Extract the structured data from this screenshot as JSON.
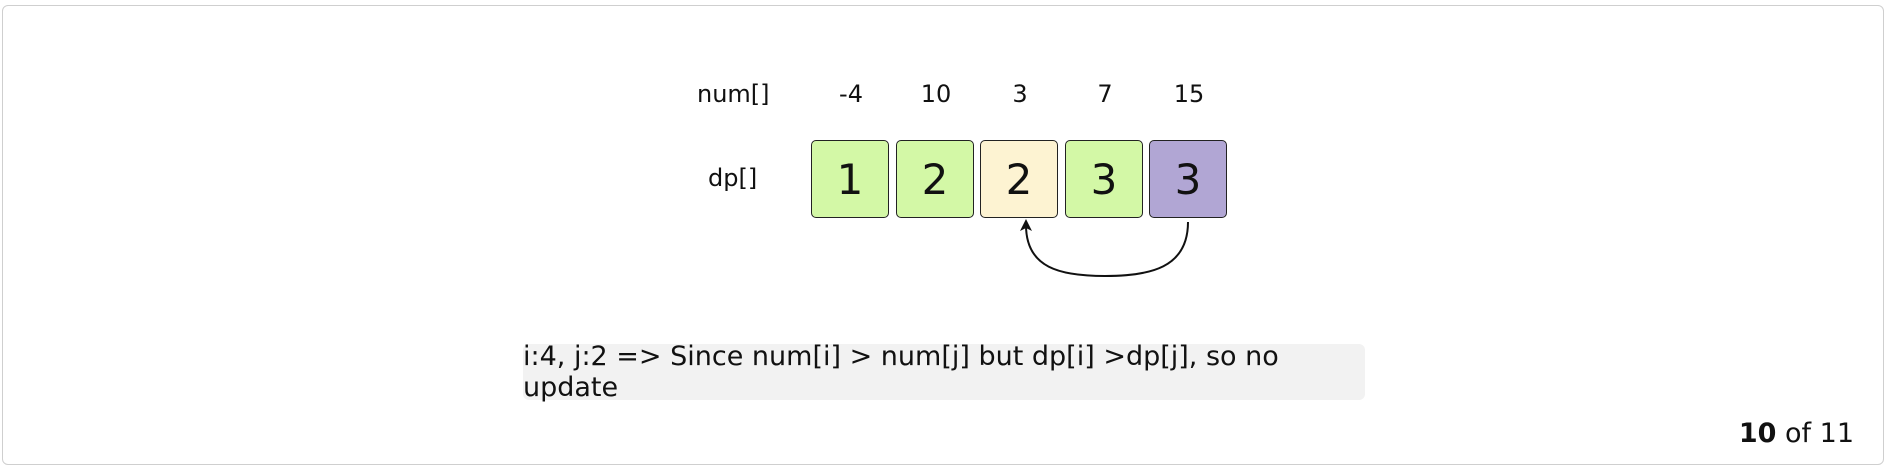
{
  "diagram": {
    "num_label": "num[]",
    "dp_label": "dp[]",
    "num": [
      "-4",
      "10",
      "3",
      "7",
      "15"
    ],
    "dp": [
      "1",
      "2",
      "2",
      "3",
      "3"
    ],
    "cell_colors": [
      "#d3f8a6",
      "#d3f8a6",
      "#fdf3d2",
      "#d3f8a6",
      "#b1a6d4"
    ],
    "arrow": {
      "from_index": 4,
      "to_index": 2
    }
  },
  "caption": "i:4, j:2 => Since num[i] > num[j] but dp[i] >dp[j], so no update",
  "pager": {
    "current": "10",
    "of": "of",
    "total": "11"
  }
}
